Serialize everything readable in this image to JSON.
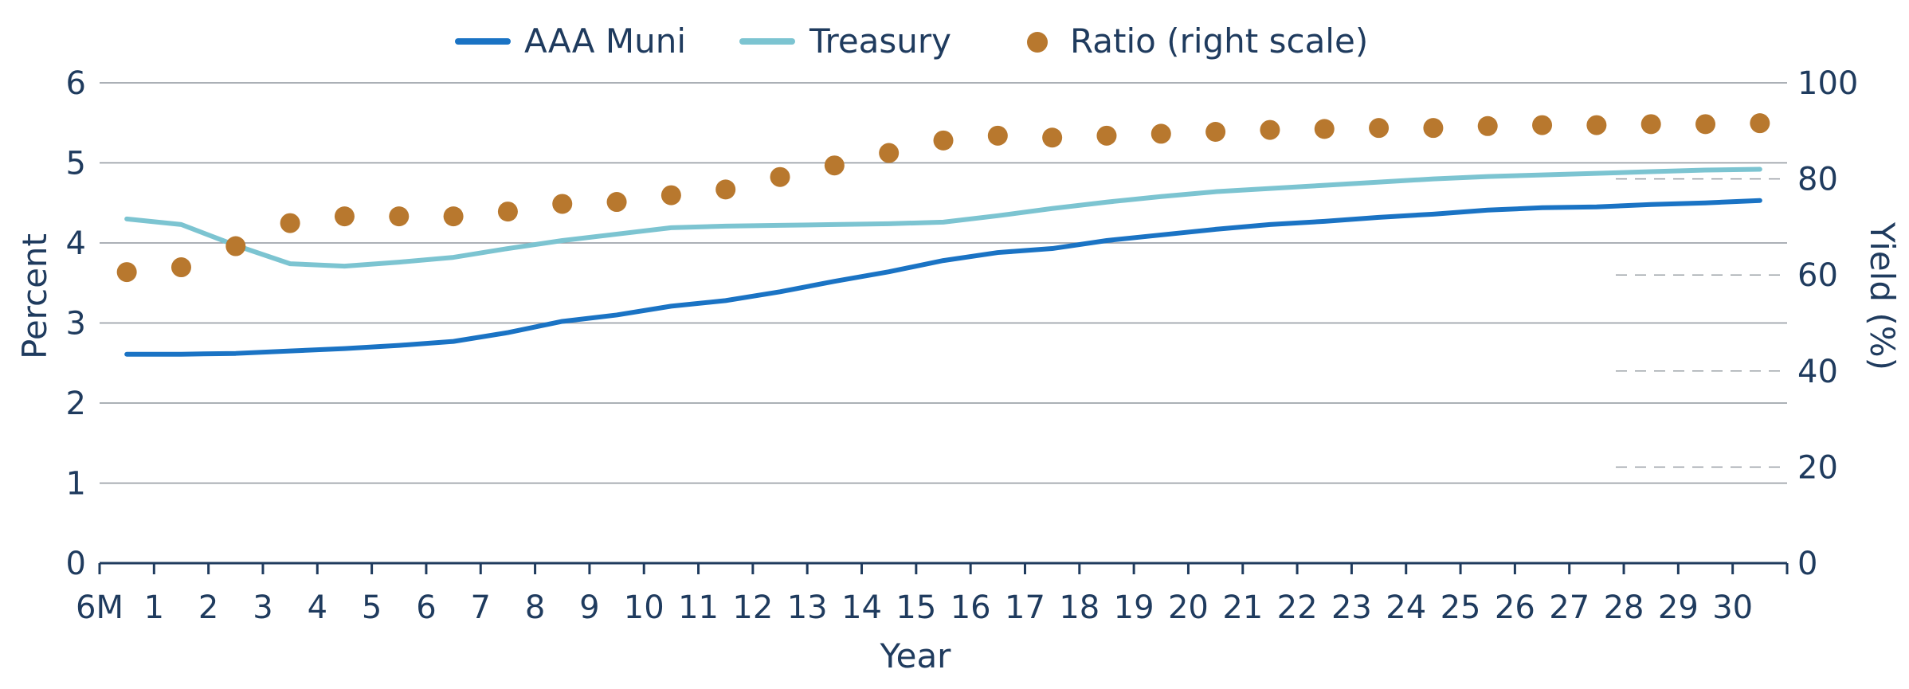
{
  "chart_data": {
    "type": "line",
    "title": "",
    "xlabel": "Year",
    "ylabel_left": "Percent",
    "ylabel_right": "Yield (%)",
    "categories": [
      "6M",
      "1",
      "2",
      "3",
      "4",
      "5",
      "6",
      "7",
      "8",
      "9",
      "10",
      "11",
      "12",
      "13",
      "14",
      "15",
      "16",
      "17",
      "18",
      "19",
      "20",
      "21",
      "22",
      "23",
      "24",
      "25",
      "26",
      "27",
      "28",
      "29",
      "30"
    ],
    "x": [
      0.5,
      1.5,
      2.5,
      3.5,
      4.5,
      5.5,
      6.5,
      7.5,
      8.5,
      9.5,
      10.5,
      11.5,
      12.5,
      13.5,
      14.5,
      15.5,
      16.5,
      17.5,
      18.5,
      19.5,
      20.5,
      21.5,
      22.5,
      23.5,
      24.5,
      25.5,
      26.5,
      27.5,
      28.5,
      29.5,
      30.5
    ],
    "ylim_left": [
      0,
      6
    ],
    "yticks_left": [
      0,
      1,
      2,
      3,
      4,
      5,
      6
    ],
    "ylim_right": [
      0,
      100
    ],
    "yticks_right": [
      0,
      20,
      40,
      60,
      80,
      100
    ],
    "grid": true,
    "legend_position": "top",
    "series": [
      {
        "name": "AAA Muni",
        "kind": "line",
        "axis": "left",
        "color": "#1a73c4",
        "values": [
          2.61,
          2.61,
          2.62,
          2.65,
          2.68,
          2.72,
          2.77,
          2.88,
          3.02,
          3.1,
          3.21,
          3.28,
          3.39,
          3.52,
          3.64,
          3.78,
          3.88,
          3.93,
          4.03,
          4.1,
          4.17,
          4.23,
          4.27,
          4.32,
          4.36,
          4.41,
          4.44,
          4.45,
          4.48,
          4.5,
          4.53
        ]
      },
      {
        "name": "Treasury",
        "kind": "line",
        "axis": "left",
        "color": "#7cc4d1",
        "values": [
          4.3,
          4.23,
          3.97,
          3.74,
          3.71,
          3.76,
          3.82,
          3.93,
          4.03,
          4.11,
          4.19,
          4.21,
          4.22,
          4.23,
          4.24,
          4.26,
          4.34,
          4.43,
          4.51,
          4.58,
          4.64,
          4.68,
          4.72,
          4.76,
          4.8,
          4.83,
          4.85,
          4.87,
          4.89,
          4.91,
          4.92
        ]
      },
      {
        "name": "Ratio (right scale)",
        "kind": "scatter",
        "axis": "right",
        "color": "#b8782e",
        "values": [
          60.6,
          61.6,
          66.0,
          70.8,
          72.2,
          72.2,
          72.2,
          73.2,
          74.8,
          75.2,
          76.6,
          77.8,
          80.4,
          82.8,
          85.4,
          88.0,
          89.0,
          88.6,
          89.0,
          89.4,
          89.8,
          90.2,
          90.4,
          90.6,
          90.6,
          91.0,
          91.2,
          91.2,
          91.4,
          91.4,
          91.6
        ]
      }
    ]
  }
}
